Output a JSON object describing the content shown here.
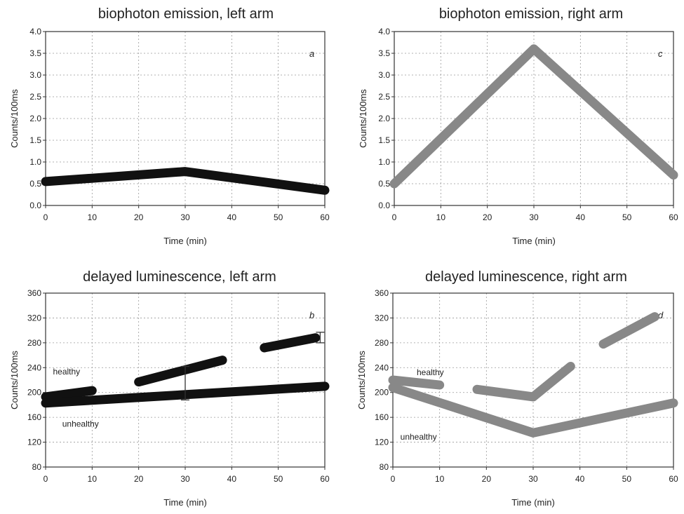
{
  "chart_data": [
    {
      "id": "a",
      "type": "line",
      "title": "biophoton emission, left arm",
      "xlabel": "Time (min)",
      "ylabel": "Counts/100ms",
      "panel_letter": "a",
      "xlim": [
        0,
        60
      ],
      "ylim": [
        0,
        4
      ],
      "xticks": [
        "0",
        "10",
        "20",
        "30",
        "40",
        "50",
        "60"
      ],
      "yticks": [
        "0.0",
        "0.5",
        "1.0",
        "1.5",
        "2.0",
        "2.5",
        "3.0",
        "3.5",
        "4.0"
      ],
      "grid": true,
      "series": [
        {
          "color": "#111111",
          "x": [
            0,
            30,
            60
          ],
          "y": [
            0.55,
            0.78,
            0.35
          ]
        }
      ],
      "error_bars": [],
      "annotations": []
    },
    {
      "id": "c",
      "type": "line",
      "title": "biophoton emission, right arm",
      "xlabel": "Time (min)",
      "ylabel": "Counts/100ms",
      "panel_letter": "c",
      "xlim": [
        0,
        60
      ],
      "ylim": [
        0,
        4
      ],
      "xticks": [
        "0",
        "10",
        "20",
        "30",
        "40",
        "50",
        "60"
      ],
      "yticks": [
        "0.0",
        "0.5",
        "1.0",
        "1.5",
        "2.0",
        "2.5",
        "3.0",
        "3.5",
        "4.0"
      ],
      "grid": true,
      "series": [
        {
          "color": "#888888",
          "x": [
            0,
            30,
            60
          ],
          "y": [
            0.5,
            3.6,
            0.7
          ]
        }
      ],
      "error_bars": [],
      "annotations": []
    },
    {
      "id": "b",
      "type": "line",
      "title": "delayed luminescence, left arm",
      "xlabel": "Time (min)",
      "ylabel": "Counts/100ms",
      "panel_letter": "b",
      "xlim": [
        0,
        60
      ],
      "ylim": [
        80,
        360
      ],
      "xticks": [
        "0",
        "10",
        "20",
        "30",
        "40",
        "50",
        "60"
      ],
      "yticks": [
        "80",
        "120",
        "160",
        "200",
        "240",
        "280",
        "320",
        "360"
      ],
      "grid": true,
      "series": [
        {
          "color": "#111111",
          "x": [
            0,
            10
          ],
          "y": [
            193,
            203
          ]
        },
        {
          "color": "#111111",
          "x": [
            20,
            38
          ],
          "y": [
            217,
            252
          ]
        },
        {
          "color": "#111111",
          "x": [
            47,
            58
          ],
          "y": [
            272,
            288
          ]
        },
        {
          "color": "#111111",
          "x": [
            0,
            60
          ],
          "y": [
            183,
            210
          ]
        }
      ],
      "error_bars": [
        {
          "x": 30,
          "low": 188,
          "high": 242
        },
        {
          "x": 59,
          "low": 280,
          "high": 297
        }
      ],
      "annotations": [
        {
          "text": "healthy",
          "x": 4.5,
          "y": 229
        },
        {
          "text": "unhealthy",
          "x": 7.5,
          "y": 145
        }
      ]
    },
    {
      "id": "d",
      "type": "line",
      "title": "delayed luminescence, right arm",
      "xlabel": "Time (min)",
      "ylabel": "Counts/100ms",
      "panel_letter": "d",
      "xlim": [
        0,
        60
      ],
      "ylim": [
        80,
        360
      ],
      "xticks": [
        "0",
        "10",
        "20",
        "30",
        "40",
        "50",
        "60"
      ],
      "yticks": [
        "80",
        "120",
        "160",
        "200",
        "240",
        "280",
        "320",
        "360"
      ],
      "grid": true,
      "series": [
        {
          "color": "#888888",
          "x": [
            0,
            10
          ],
          "y": [
            220,
            212
          ]
        },
        {
          "color": "#888888",
          "x": [
            18,
            30,
            38
          ],
          "y": [
            205,
            193,
            242
          ]
        },
        {
          "color": "#888888",
          "x": [
            45,
            56
          ],
          "y": [
            278,
            322
          ]
        },
        {
          "color": "#888888",
          "x": [
            0,
            30,
            60
          ],
          "y": [
            208,
            135,
            183
          ]
        }
      ],
      "error_bars": [],
      "annotations": [
        {
          "text": "healthy",
          "x": 8,
          "y": 228
        },
        {
          "text": "unhealthy",
          "x": 5.5,
          "y": 124
        }
      ]
    }
  ]
}
